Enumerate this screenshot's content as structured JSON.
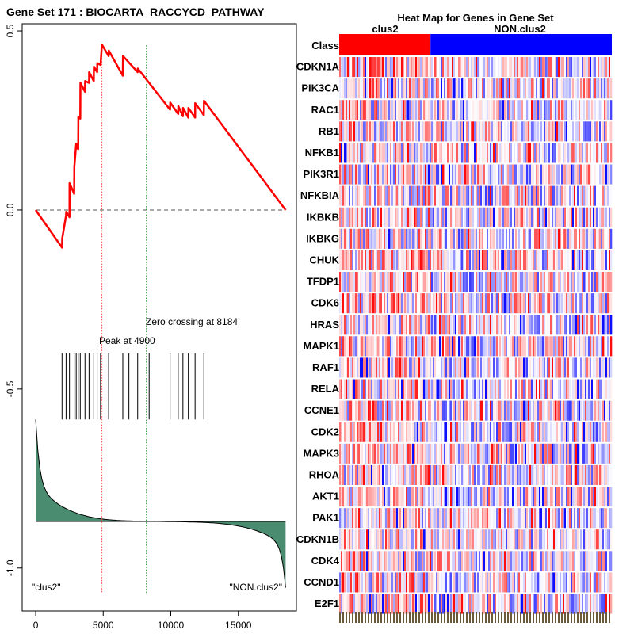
{
  "chart_data": [
    {
      "type": "line",
      "title": "Gene Set  171 : BIOCARTA_RACCYCD_PATHWAY",
      "xlim": [
        -1000,
        19300
      ],
      "ylim": [
        -1.12,
        0.52
      ],
      "x_ticks": [
        0,
        5000,
        10000,
        15000
      ],
      "x_tick_labels": [
        "0",
        "5000",
        "10000",
        "15000"
      ],
      "y_ticks": [
        0.5,
        0.0,
        -0.5,
        -1.0
      ],
      "y_tick_labels": [
        "0.5",
        "0.0",
        "-0.5",
        "-1.0"
      ],
      "enrichment_score": [
        [
          0,
          0.0
        ],
        [
          1950,
          -0.105
        ],
        [
          1960,
          -0.08
        ],
        [
          2250,
          -0.015
        ],
        [
          2260,
          -0.005
        ],
        [
          2500,
          -0.02
        ],
        [
          2510,
          0.075
        ],
        [
          2850,
          0.045
        ],
        [
          2860,
          0.12
        ],
        [
          3000,
          0.185
        ],
        [
          3010,
          0.175
        ],
        [
          3150,
          0.17
        ],
        [
          3160,
          0.26
        ],
        [
          3300,
          0.255
        ],
        [
          3310,
          0.355
        ],
        [
          3650,
          0.33
        ],
        [
          3660,
          0.36
        ],
        [
          3950,
          0.355
        ],
        [
          3960,
          0.385
        ],
        [
          4300,
          0.36
        ],
        [
          4310,
          0.4
        ],
        [
          4550,
          0.385
        ],
        [
          4560,
          0.41
        ],
        [
          4800,
          0.405
        ],
        [
          4900,
          0.462
        ],
        [
          5400,
          0.43
        ],
        [
          5410,
          0.445
        ],
        [
          6450,
          0.375
        ],
        [
          6460,
          0.43
        ],
        [
          7550,
          0.385
        ],
        [
          7560,
          0.395
        ],
        [
          8400,
          0.355
        ],
        [
          9950,
          0.28
        ],
        [
          9960,
          0.3
        ],
        [
          10550,
          0.268
        ],
        [
          10560,
          0.29
        ],
        [
          10900,
          0.262
        ],
        [
          10910,
          0.285
        ],
        [
          11300,
          0.258
        ],
        [
          11310,
          0.285
        ],
        [
          11800,
          0.258
        ],
        [
          11810,
          0.298
        ],
        [
          12450,
          0.265
        ],
        [
          12460,
          0.305
        ],
        [
          18500,
          0.0
        ]
      ],
      "peak": {
        "x": 4900,
        "label": "Peak at 4900"
      },
      "zero_crossing": {
        "x": 8184,
        "label": "Zero crossing at 8184"
      },
      "hit_positions": [
        1950,
        2250,
        2500,
        2850,
        3000,
        3150,
        3300,
        3650,
        3950,
        4300,
        4550,
        4800,
        5400,
        6450,
        6900,
        7550,
        8400,
        9950,
        10550,
        10900,
        11300,
        11800,
        12450
      ],
      "ranked_metric_baseline": -0.87,
      "ranked_metric_top": -0.59,
      "ranked_metric_bottom": -1.05,
      "x_max": 18500,
      "left_class_label": "\"clus2\"",
      "right_class_label": "\"NON.clus2\"",
      "colors": {
        "es_line": "#ff0000",
        "fill": "#4a8c6f",
        "peak_line": "#ff4444",
        "zero_line": "#33aa33"
      }
    },
    {
      "type": "heatmap",
      "title": "Heat Map for Genes in Gene Set",
      "class_row_label": "Class",
      "classes": [
        {
          "name": "clus2",
          "fraction": 0.335,
          "color": "#ff0000"
        },
        {
          "name": "NON.clus2",
          "fraction": 0.665,
          "color": "#0000ff"
        }
      ],
      "genes": [
        "CDKN1A",
        "PIK3CA",
        "RAC1",
        "RB1",
        "NFKB1",
        "PIK3R1",
        "NFKBIA",
        "IKBKB",
        "IKBKG",
        "CHUK",
        "TFDP1",
        "CDK6",
        "HRAS",
        "MAPK1",
        "RAF1",
        "RELA",
        "CCNE1",
        "CDK2",
        "MAPK3",
        "RHOA",
        "AKT1",
        "PAK1",
        "CDKN1B",
        "CDK4",
        "CCND1",
        "E2F1"
      ],
      "colors": {
        "high": "#ff0000",
        "mid": "#ffffff",
        "low": "#0000ff"
      }
    }
  ]
}
